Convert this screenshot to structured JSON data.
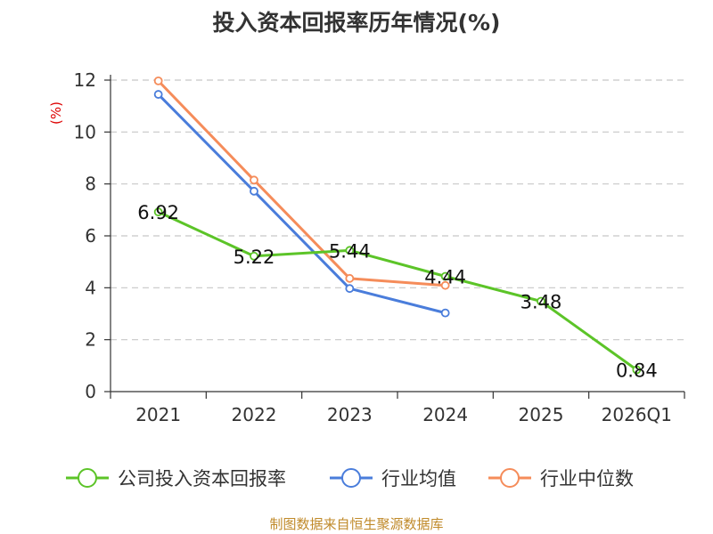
{
  "title": "投入资本回报率历年情况(%)",
  "source": "制图数据来自恒生聚源数据库",
  "chart_data": {
    "type": "line",
    "title": "投入资本回报率历年情况(%)",
    "ylabel": "(%)",
    "xlabel": "",
    "categories": [
      "2021",
      "2022",
      "2023",
      "2024",
      "2025",
      "2026Q1"
    ],
    "ylim": [
      0,
      12
    ],
    "yticks": [
      0,
      2,
      4,
      6,
      8,
      10,
      12
    ],
    "grid": true,
    "legend_position": "bottom",
    "series": [
      {
        "name": "公司投入资本回报率",
        "color": "#5cc428",
        "values": [
          6.92,
          5.22,
          5.44,
          4.44,
          3.48,
          0.84
        ],
        "labels": [
          "6.92",
          "5.22",
          "5.44",
          "4.44",
          "3.48",
          "0.84"
        ]
      },
      {
        "name": "行业均值",
        "color": "#4a7ddb",
        "values": [
          11.45,
          7.72,
          3.97,
          3.03,
          null,
          null
        ]
      },
      {
        "name": "行业中位数",
        "color": "#f58c5a",
        "values": [
          11.97,
          8.15,
          4.36,
          4.09,
          null,
          null
        ]
      }
    ]
  }
}
